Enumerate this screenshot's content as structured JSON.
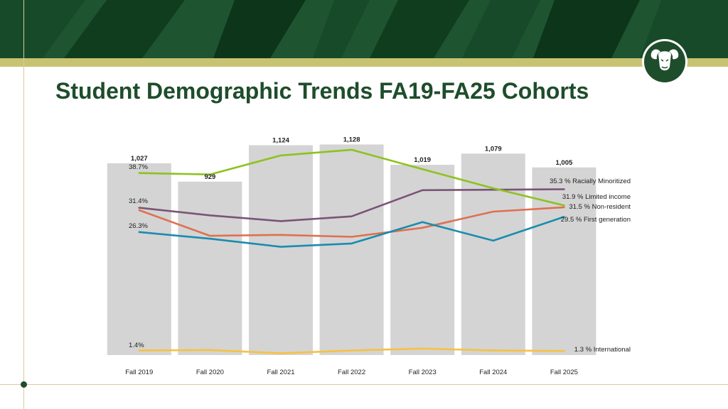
{
  "slide": {
    "title": "Student Demographic Trends FA19-FA25 Cohorts"
  },
  "colors": {
    "banner_dark": "#0f3d1e",
    "banner_mid": "#1e5530",
    "gold": "#c8c372",
    "title_green": "#1e4d2b",
    "bar_gray": "#d4d4d4"
  },
  "chart_data": {
    "type": "bar",
    "categories": [
      "Fall 2019",
      "Fall 2020",
      "Fall 2021",
      "Fall 2022",
      "Fall 2023",
      "Fall 2024",
      "Fall 2025"
    ],
    "bars": {
      "values": [
        1027,
        929,
        1124,
        1128,
        1019,
        1079,
        1005
      ],
      "labels": [
        "1,027",
        "929",
        "1,124",
        "1,128",
        "1,019",
        "1,079",
        "1,005"
      ],
      "ylim": [
        0,
        1150
      ],
      "color": "#d4d4d4"
    },
    "lines": {
      "ylim": [
        0,
        47
      ],
      "series": [
        {
          "key": "racially-minoritized",
          "color": "#7a5476",
          "values": [
            31.4,
            29.8,
            28.6,
            29.6,
            35.1,
            35.2,
            35.3
          ],
          "start_label": "31.4%",
          "end_label": "35.3 % Racially Minoritized"
        },
        {
          "key": "limited-income",
          "color": "#8dc21f",
          "values": [
            38.7,
            38.4,
            42.4,
            43.6,
            39.5,
            35.5,
            31.9
          ],
          "start_label": "38.7%",
          "end_label": "31.9 % Limited income"
        },
        {
          "key": "non-resident",
          "color": "#e07050",
          "values": [
            30.9,
            25.5,
            25.7,
            25.3,
            27.2,
            30.6,
            31.5
          ],
          "start_label": "",
          "end_label": "31.5 % Non-resident"
        },
        {
          "key": "first-generation",
          "color": "#1a8caf",
          "values": [
            26.3,
            24.9,
            23.2,
            23.9,
            28.4,
            24.5,
            29.5
          ],
          "start_label": "26.3%",
          "end_label": "29.5 % First generation"
        },
        {
          "key": "international",
          "color": "#f5c242",
          "values": [
            1.4,
            1.5,
            0.8,
            1.4,
            1.8,
            1.4,
            1.3
          ],
          "start_label": "1.4%",
          "end_label": "1.3 % International"
        }
      ]
    },
    "title": "",
    "xlabel": "",
    "ylabel": "",
    "grid": false,
    "legend": "none"
  }
}
